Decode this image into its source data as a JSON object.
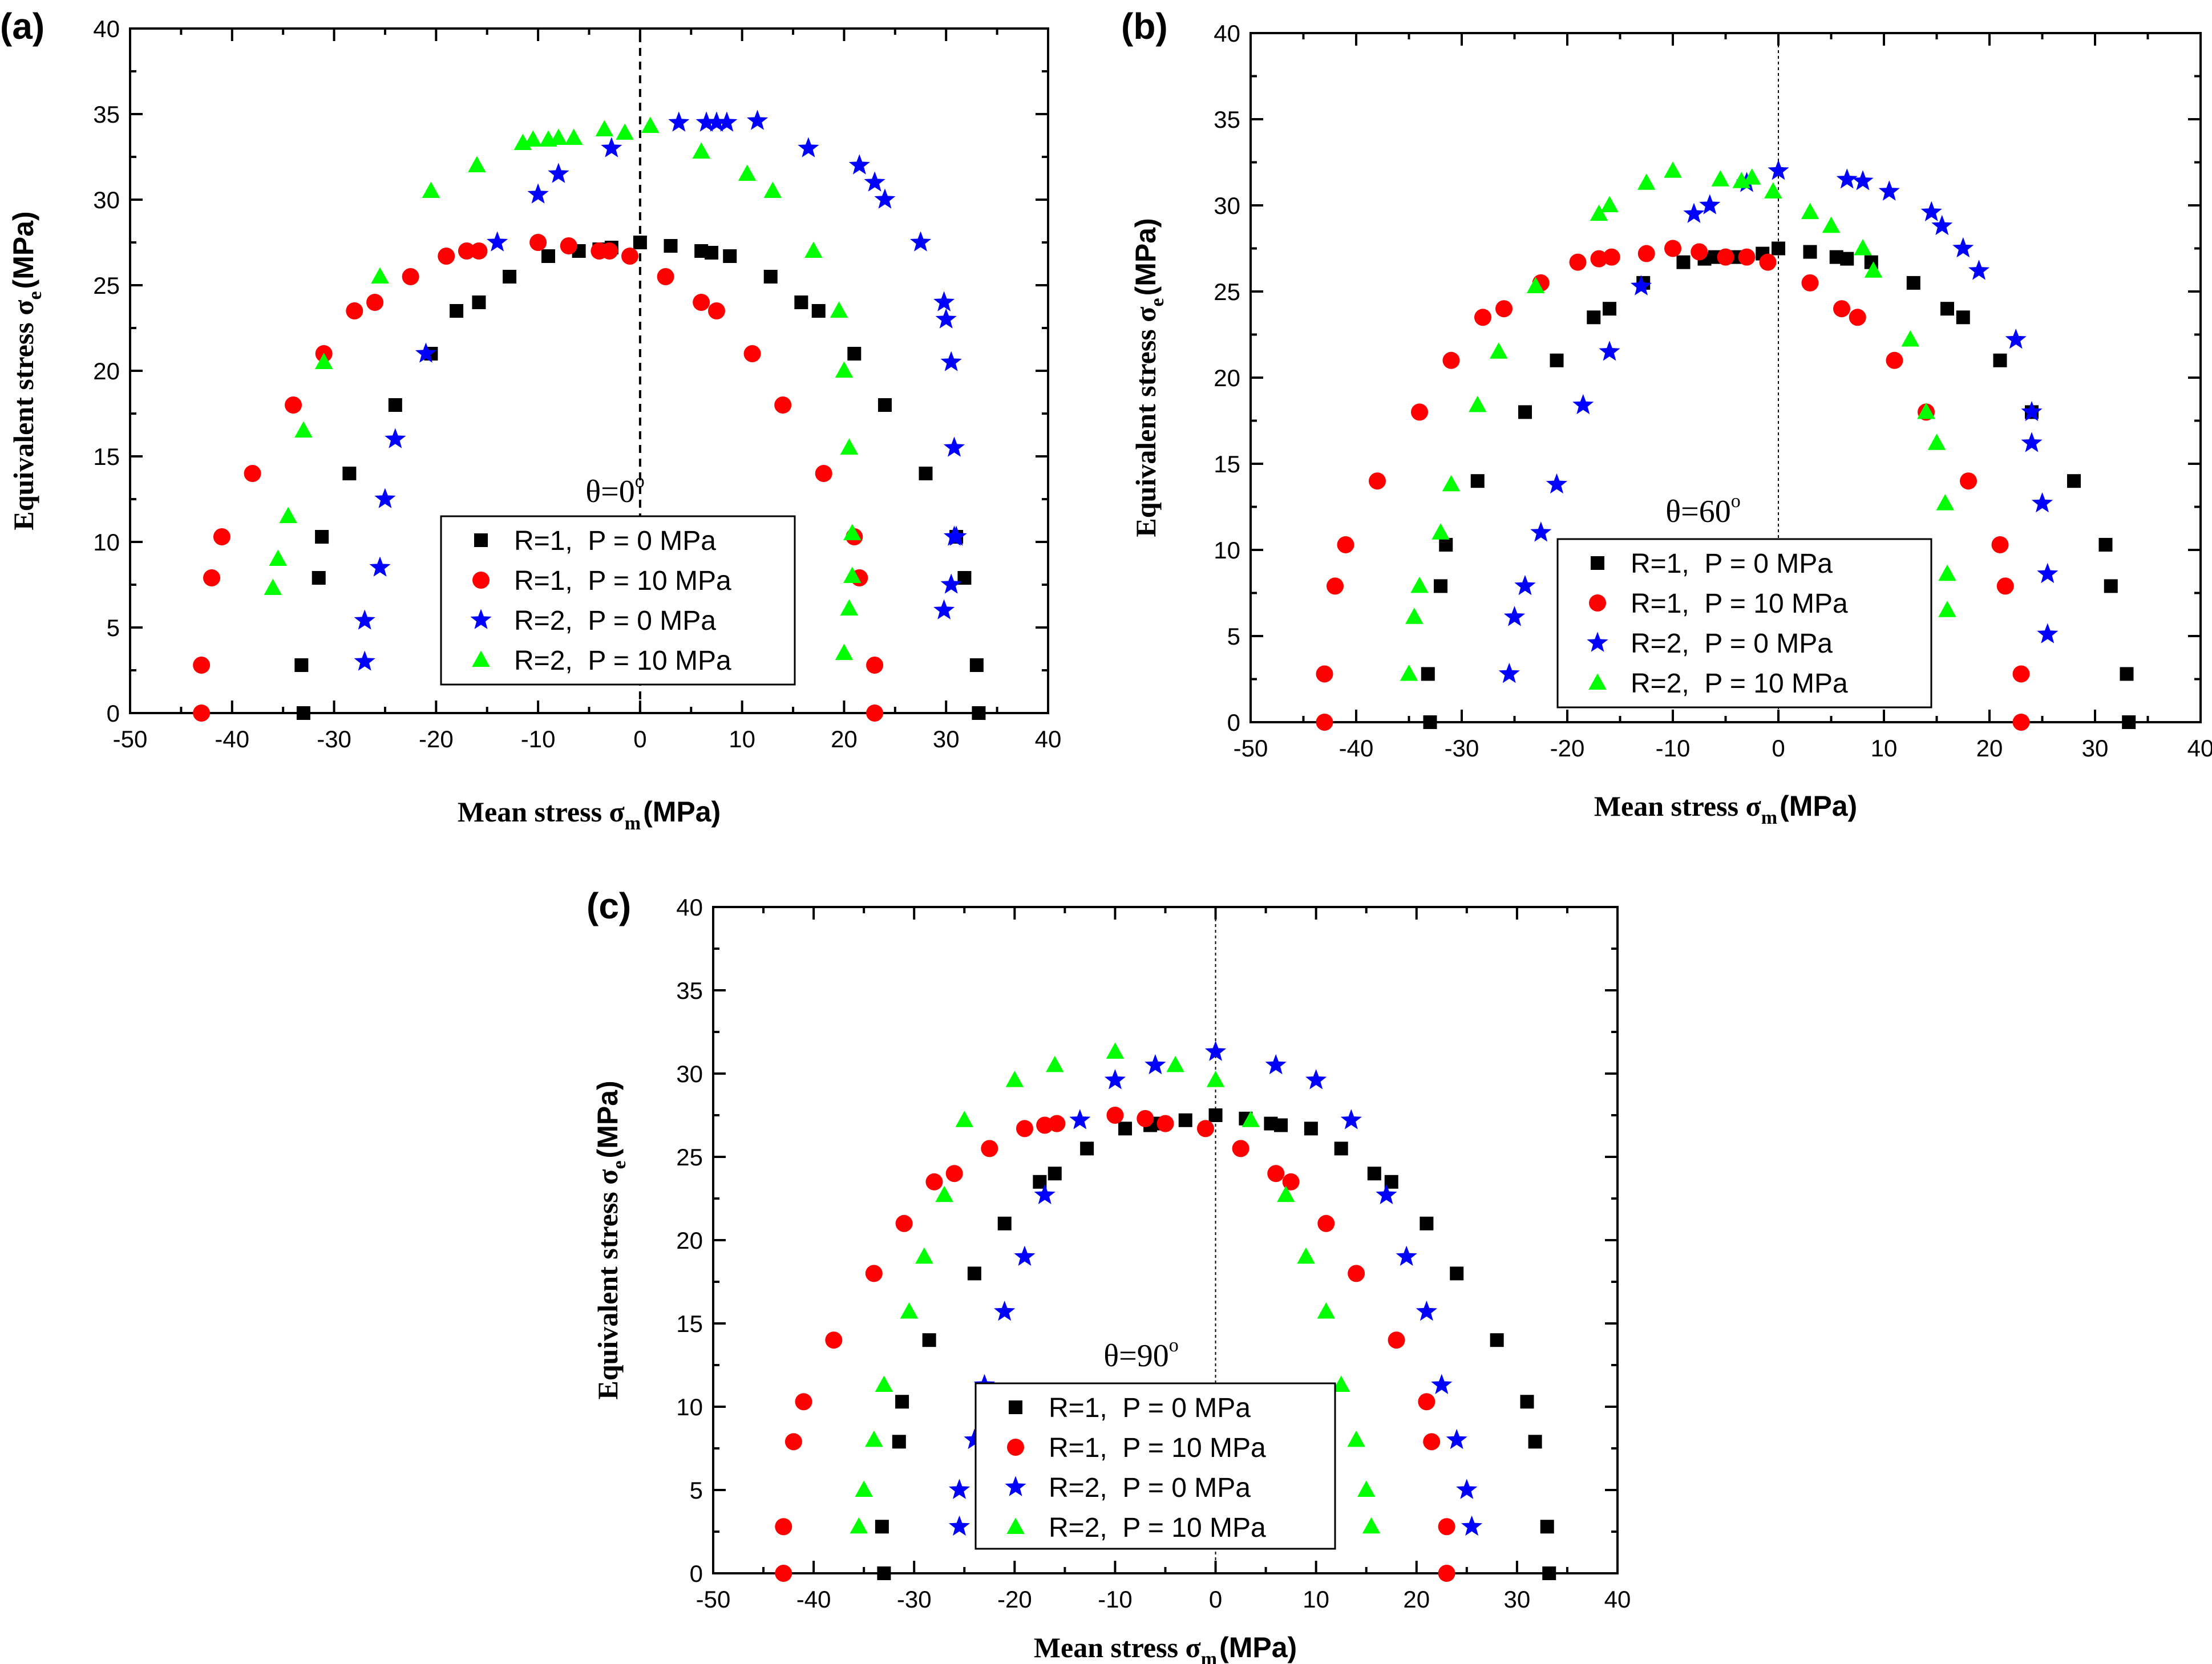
{
  "chart_data": [
    {
      "type": "scatter",
      "panel_label": "(a)",
      "annotation": "θ=0",
      "annotation_sup": "o",
      "xlabel": "Mean stress  σ",
      "xlabel_sub": "m",
      "xlabel_unit": "(MPa)",
      "ylabel": "Equivalent stress  σ",
      "ylabel_sub": "e",
      "ylabel_unit": "(MPa)",
      "xlim": [
        -50,
        40
      ],
      "ylim": [
        0,
        40
      ],
      "xticks": [
        -50,
        -40,
        -30,
        -20,
        -10,
        0,
        10,
        20,
        30,
        40
      ],
      "yticks": [
        0,
        5,
        10,
        15,
        20,
        25,
        30,
        35,
        40
      ],
      "grid": false,
      "legend_position": "center",
      "vertical_reference_at_x": 0,
      "series": [
        {
          "name": "R=1,  P = 0 MPa",
          "marker": "square",
          "color": "#000000",
          "x": [
            -33,
            -33.2,
            -31.5,
            -31.2,
            -28.5,
            -24,
            -20.5,
            -18,
            -15.8,
            -12.8,
            -9,
            -6,
            -4,
            -2.8,
            0,
            3,
            6,
            7,
            8.8,
            12.8,
            15.8,
            17.5,
            21,
            24,
            28,
            31,
            31.8,
            33,
            33.2
          ],
          "y": [
            0,
            2.8,
            7.9,
            10.3,
            14,
            18,
            21,
            23.5,
            24,
            25.5,
            26.7,
            27,
            27.1,
            27.2,
            27.5,
            27.3,
            27,
            26.9,
            26.7,
            25.5,
            24,
            23.5,
            21,
            18,
            14,
            10.3,
            7.9,
            2.8,
            0
          ]
        },
        {
          "name": "R=1,  P = 10 MPa",
          "marker": "circle",
          "color": "#ff0000",
          "x": [
            -43,
            -43,
            -42,
            -41,
            -38,
            -34,
            -31,
            -28,
            -26,
            -22.5,
            -19,
            -17,
            -15.8,
            -10,
            -7,
            -4,
            -3,
            -1,
            2.5,
            6,
            7.5,
            11,
            14,
            18,
            21,
            21.5,
            23,
            23
          ],
          "y": [
            0,
            2.8,
            7.9,
            10.3,
            14,
            18,
            21,
            23.5,
            24,
            25.5,
            26.7,
            27,
            27,
            27.5,
            27.3,
            27,
            27,
            26.7,
            25.5,
            24,
            23.5,
            21,
            18,
            14,
            10.3,
            7.9,
            2.8,
            0
          ]
        },
        {
          "name": "R=2,  P = 0 MPa",
          "marker": "star",
          "color": "#0000ff",
          "x": [
            -27,
            -27,
            -25.5,
            -25,
            -24,
            -21,
            -14,
            -10,
            -8,
            -2.8,
            3.8,
            6.5,
            7.5,
            8.5,
            11.5,
            16.5,
            21.5,
            23,
            24,
            27.5,
            29.8,
            30,
            30.5,
            30.8,
            30.8,
            31,
            30.5,
            29.8
          ],
          "y": [
            3,
            5.4,
            8.5,
            12.5,
            16,
            21,
            27.5,
            30.3,
            31.5,
            33,
            34.5,
            34.5,
            34.5,
            34.5,
            34.6,
            33,
            32,
            31,
            30,
            27.5,
            24,
            23,
            20.5,
            15.5,
            10.3,
            10.3,
            7.5,
            6
          ]
        },
        {
          "name": "R=2,  P = 10 MPa",
          "marker": "triangle",
          "color": "#00ff00",
          "x": [
            -36,
            -35.5,
            -34.5,
            -33,
            -31,
            -25.5,
            -20.5,
            -16,
            -11.5,
            -10.5,
            -9,
            -8,
            -6.5,
            -3.5,
            -1.5,
            1,
            6,
            10.5,
            13,
            17,
            19.5,
            20,
            20.5,
            20.8,
            20.8,
            20.5,
            20
          ],
          "y": [
            7.3,
            9,
            11.5,
            16.5,
            20.5,
            25.5,
            30.5,
            32,
            33.3,
            33.5,
            33.5,
            33.6,
            33.6,
            34.1,
            33.9,
            34.3,
            32.8,
            31.5,
            30.5,
            27,
            23.5,
            20,
            15.5,
            10.5,
            8,
            6.1,
            3.5
          ]
        }
      ],
      "legend_entries": [
        "R=1,  P = 0 MPa",
        "R=1,  P = 10 MPa",
        "R=2,  P = 0 MPa",
        "R=2,  P = 10 MPa"
      ]
    },
    {
      "type": "scatter",
      "panel_label": "(b)",
      "annotation": "θ=60",
      "annotation_sup": "o",
      "xlabel": "Mean stress σ",
      "xlabel_sub": "m",
      "xlabel_unit": "(MPa)",
      "ylabel": "Equivalent stress σ",
      "ylabel_sub": "e",
      "ylabel_unit": "(MPa)",
      "xlim": [
        -50,
        40
      ],
      "ylim": [
        0,
        40
      ],
      "xticks": [
        -50,
        -40,
        -30,
        -20,
        -10,
        0,
        10,
        20,
        30,
        40
      ],
      "yticks": [
        0,
        5,
        10,
        15,
        20,
        25,
        30,
        35,
        40
      ],
      "grid": false,
      "legend_position": "center-right",
      "vertical_reference_at_x": 0,
      "series": [
        {
          "name": "R=1,  P = 0 MPa",
          "marker": "square",
          "color": "#000000",
          "x": [
            -33,
            -33.2,
            -32,
            -31.5,
            -28.5,
            -24,
            -21,
            -17.5,
            -16,
            -12.8,
            -9,
            -7,
            -6,
            -4,
            -1.5,
            0,
            3,
            5.5,
            6.5,
            8.8,
            12.8,
            16,
            17.5,
            21,
            24,
            28,
            31,
            31.5,
            33,
            33.2
          ],
          "y": [
            0,
            2.8,
            7.9,
            10.3,
            14,
            18,
            21,
            23.5,
            24,
            25.5,
            26.7,
            26.9,
            27,
            27,
            27.2,
            27.5,
            27.3,
            27,
            26.9,
            26.7,
            25.5,
            24,
            23.5,
            21,
            18,
            14,
            10.3,
            7.9,
            2.8,
            0
          ]
        },
        {
          "name": "R=1,  P = 10 MPa",
          "marker": "circle",
          "color": "#ff0000",
          "x": [
            -43,
            -43,
            -42,
            -41,
            -38,
            -34,
            -31,
            -28,
            -26,
            -22.5,
            -19,
            -17,
            -15.8,
            -12.5,
            -10,
            -7.5,
            -5,
            -3,
            -1,
            3,
            6,
            7.5,
            11,
            14,
            18,
            21,
            21.5,
            23,
            23
          ],
          "y": [
            0,
            2.8,
            7.9,
            10.3,
            14,
            18,
            21,
            23.5,
            24,
            25.5,
            26.7,
            26.9,
            27,
            27.2,
            27.5,
            27.3,
            27,
            27,
            26.7,
            25.5,
            24,
            23.5,
            21,
            18,
            14,
            10.3,
            7.9,
            2.8,
            0
          ]
        },
        {
          "name": "R=2,  P = 0 MPa",
          "marker": "star",
          "color": "#0000ff",
          "x": [
            -25.5,
            -25,
            -24,
            -22.5,
            -21,
            -18.5,
            -16,
            -13,
            -8,
            -6.5,
            -3,
            0,
            6.5,
            8,
            10.5,
            14.5,
            15.5,
            17.5,
            19,
            22.5,
            24,
            24,
            25,
            25.5,
            25.5
          ],
          "y": [
            2.8,
            6.1,
            7.9,
            11,
            13.8,
            18.4,
            21.5,
            25.3,
            29.5,
            30,
            31.3,
            32,
            31.5,
            31.4,
            30.8,
            29.6,
            28.8,
            27.5,
            26.2,
            22.2,
            18,
            16.2,
            12.7,
            8.6,
            5.1
          ]
        },
        {
          "name": "R=2,  P = 10 MPa",
          "marker": "triangle",
          "color": "#00ff00",
          "x": [
            -35,
            -34.5,
            -34,
            -32,
            -31,
            -28.5,
            -26.5,
            -23,
            -17,
            -16,
            -12.5,
            -10,
            -5.5,
            -3.5,
            -2.5,
            -0.5,
            3,
            5,
            8,
            9,
            12.5,
            14,
            14,
            15,
            15.8,
            16,
            16
          ],
          "y": [
            2.8,
            6.1,
            7.9,
            11,
            13.8,
            18.4,
            21.5,
            25.3,
            29.5,
            30,
            31.3,
            32,
            31.5,
            31.4,
            31.6,
            30.8,
            29.6,
            28.8,
            27.5,
            26.2,
            22.2,
            18,
            18,
            16.2,
            12.7,
            8.6,
            6.5
          ]
        }
      ],
      "legend_entries": [
        "R=1,  P = 0 MPa",
        "R=1,  P = 10 MPa",
        "R=2,  P = 0 MPa",
        "R=2,  P = 10 MPa"
      ]
    },
    {
      "type": "scatter",
      "panel_label": "(c)",
      "annotation": "θ=90",
      "annotation_sup": "o",
      "xlabel": "Mean stress σ",
      "xlabel_sub": "m",
      "xlabel_unit": "(MPa)",
      "ylabel": "Equivalent stress σ",
      "ylabel_sub": "e",
      "ylabel_unit": "(MPa)",
      "xlim": [
        -50,
        40
      ],
      "ylim": [
        0,
        40
      ],
      "xticks": [
        -50,
        -40,
        -30,
        -20,
        -10,
        0,
        10,
        20,
        30,
        40
      ],
      "yticks": [
        0,
        5,
        10,
        15,
        20,
        25,
        30,
        35,
        40
      ],
      "grid": false,
      "legend_position": "bottom-center",
      "vertical_reference_at_x": 0,
      "series": [
        {
          "name": "R=1,  P = 0 MPa",
          "marker": "square",
          "color": "#000000",
          "x": [
            -33,
            -33.2,
            -31.5,
            -31.2,
            -28.5,
            -24,
            -21,
            -17.5,
            -16,
            -12.8,
            -9,
            -6.5,
            -5.5,
            -3,
            0,
            3,
            5.5,
            6.5,
            9.5,
            12.5,
            15.8,
            17.5,
            21,
            24,
            28,
            31,
            31.8,
            33,
            33.2
          ],
          "y": [
            0,
            2.8,
            7.9,
            10.3,
            14,
            18,
            21,
            23.5,
            24,
            25.5,
            26.7,
            26.9,
            27,
            27.2,
            27.5,
            27.3,
            27,
            26.9,
            26.7,
            25.5,
            24,
            23.5,
            21,
            18,
            14,
            10.3,
            7.9,
            2.8,
            0
          ]
        },
        {
          "name": "R=1,  P = 10 MPa",
          "marker": "circle",
          "color": "#ff0000",
          "x": [
            -43,
            -43,
            -42,
            -41,
            -38,
            -34,
            -31,
            -28,
            -26,
            -22.5,
            -19,
            -17,
            -15.8,
            -10,
            -7,
            -5,
            -1,
            2.5,
            6,
            7.5,
            11,
            14,
            18,
            21,
            21.5,
            23,
            23
          ],
          "y": [
            0,
            2.8,
            7.9,
            10.3,
            14,
            18,
            21,
            23.5,
            24,
            25.5,
            26.7,
            26.9,
            27,
            27.5,
            27.3,
            27,
            26.7,
            25.5,
            24,
            23.5,
            21,
            18,
            14,
            10.3,
            7.9,
            2.8,
            0
          ]
        },
        {
          "name": "R=2,  P = 0 MPa",
          "marker": "star",
          "color": "#0000ff",
          "x": [
            -25.5,
            -25.5,
            -24,
            -23,
            -21,
            -19,
            -17,
            -13.5,
            -10,
            -6,
            0,
            6,
            10,
            13.5,
            17,
            19,
            21,
            22.5,
            24,
            25,
            25.5
          ],
          "y": [
            2.8,
            5,
            8,
            11.3,
            15.7,
            19,
            22.7,
            27.2,
            29.6,
            30.5,
            31.3,
            30.5,
            29.6,
            27.2,
            22.7,
            19,
            15.7,
            11.3,
            8,
            5,
            2.8
          ]
        },
        {
          "name": "R=2,  P = 10 MPa",
          "marker": "triangle",
          "color": "#00ff00",
          "x": [
            -35.5,
            -35,
            -34,
            -33,
            -30.5,
            -29,
            -27,
            -25,
            -20,
            -16,
            -10,
            -4,
            0,
            3.5,
            7,
            9,
            11,
            12.5,
            14,
            15,
            15.5
          ],
          "y": [
            2.8,
            5,
            8,
            11.3,
            15.7,
            19,
            22.7,
            27.2,
            29.6,
            30.5,
            31.3,
            30.5,
            29.6,
            27.2,
            22.7,
            19,
            15.7,
            11.3,
            8,
            5,
            2.8
          ]
        }
      ],
      "legend_entries": [
        "R=1,  P = 0 MPa",
        "R=1,  P = 10 MPa",
        "R=2,  P = 0 MPa",
        "R=2,  P = 10 MPa"
      ]
    }
  ]
}
